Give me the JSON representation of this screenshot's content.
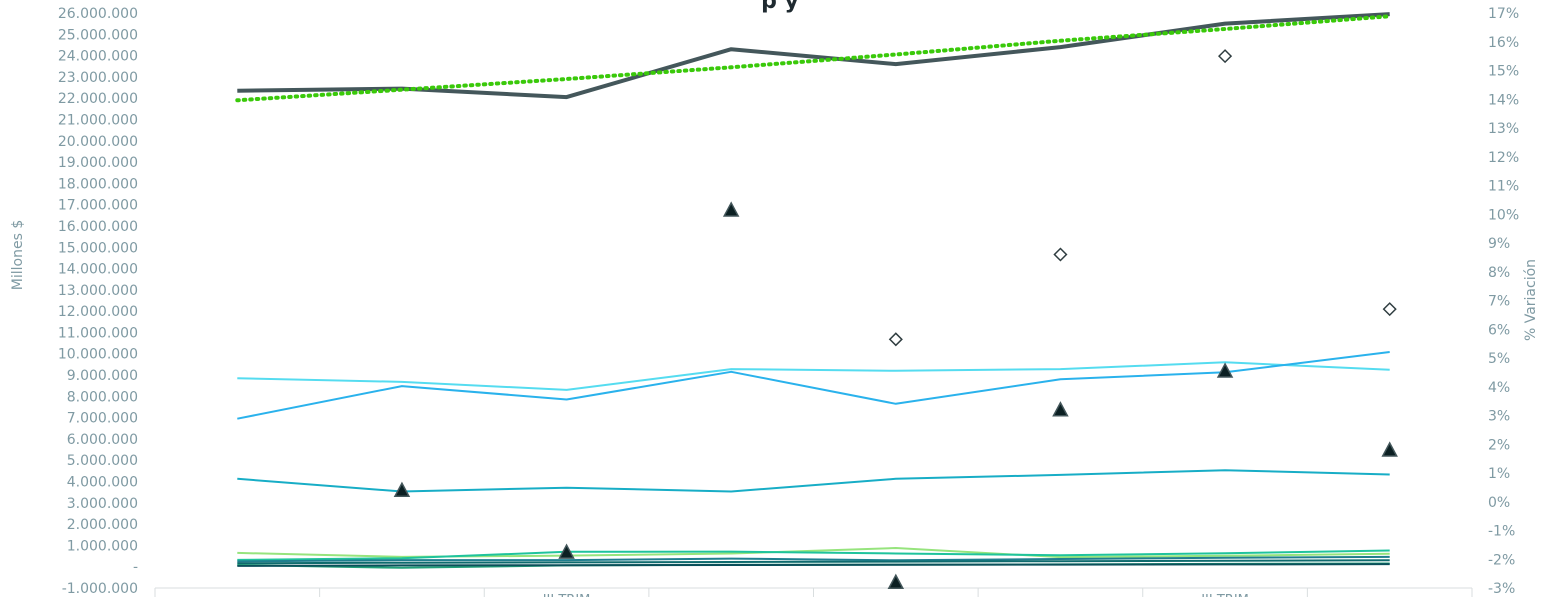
{
  "chart_data": {
    "type": "line",
    "title": "",
    "title_visible": "p y",
    "ylabel": "Millones $",
    "y2label": "% Variación",
    "ylim": [
      -1000000,
      26000000
    ],
    "y2lim": [
      -3,
      17
    ],
    "left_ticks": [
      "-1.000.000",
      "-",
      "1.000.000",
      "2.000.000",
      "3.000.000",
      "4.000.000",
      "5.000.000",
      "6.000.000",
      "7.000.000",
      "8.000.000",
      "9.000.000",
      "10.000.000",
      "11.000.000",
      "12.000.000",
      "13.000.000",
      "14.000.000",
      "15.000.000",
      "16.000.000",
      "17.000.000",
      "18.000.000",
      "19.000.000",
      "20.000.000",
      "21.000.000",
      "22.000.000",
      "23.000.000",
      "24.000.000",
      "25.000.000",
      "26.000.000"
    ],
    "right_ticks": [
      "-3%",
      "-2%",
      "-1%",
      "0%",
      "1%",
      "2%",
      "3%",
      "4%",
      "5%",
      "6%",
      "7%",
      "8%",
      "9%",
      "10%",
      "11%",
      "12%",
      "13%",
      "14%",
      "15%",
      "16%",
      "17%"
    ],
    "categories": [
      "",
      "",
      "III TRIM",
      "",
      "",
      "",
      "III TRIM",
      ""
    ],
    "series": [
      {
        "name": "",
        "axis": "left",
        "color": "#44575b",
        "width": 4,
        "values": [
          22350000,
          22450000,
          22050000,
          24300000,
          23600000,
          24400000,
          25500000,
          25950000
        ]
      },
      {
        "name": "",
        "axis": "left",
        "color": "#3ac90a",
        "width": 4,
        "dash": "dotted",
        "values": [
          21900000,
          22400000,
          22900000,
          23450000,
          24050000,
          24700000,
          25250000,
          25850000
        ]
      },
      {
        "name": "",
        "axis": "left",
        "color": "#55dcf0",
        "width": 2,
        "values": [
          8850000,
          8680000,
          8300000,
          9280000,
          9200000,
          9280000,
          9600000,
          9250000
        ]
      },
      {
        "name": "",
        "axis": "left",
        "color": "#2ab2ec",
        "width": 2,
        "values": [
          6950000,
          8480000,
          7850000,
          9150000,
          7650000,
          8800000,
          9130000,
          10080000
        ]
      },
      {
        "name": "",
        "axis": "left",
        "color": "#17adc6",
        "width": 2,
        "values": [
          4130000,
          3530000,
          3710000,
          3530000,
          4130000,
          4310000,
          4530000,
          4330000
        ]
      },
      {
        "name": "",
        "axis": "left",
        "color": "#96e47d",
        "width": 2,
        "values": [
          650000,
          460000,
          520000,
          620000,
          880000,
          450000,
          510000,
          610000
        ]
      },
      {
        "name": "",
        "axis": "left",
        "color": "#1fc39c",
        "width": 2,
        "values": [
          320000,
          400000,
          700000,
          710000,
          620000,
          540000,
          630000,
          760000
        ]
      },
      {
        "name": "",
        "axis": "left",
        "color": "#1f7e8e",
        "width": 2,
        "values": [
          250000,
          310000,
          310000,
          380000,
          300000,
          360000,
          420000,
          460000
        ]
      },
      {
        "name": "",
        "axis": "left",
        "color": "#0e6b6e",
        "width": 2,
        "values": [
          160000,
          190000,
          200000,
          220000,
          240000,
          260000,
          280000,
          300000
        ]
      },
      {
        "name": "",
        "axis": "left",
        "color": "#22a07a",
        "width": 2,
        "values": [
          80000,
          -50000,
          60000,
          90000,
          100000,
          110000,
          130000,
          150000
        ]
      },
      {
        "name": "",
        "axis": "left",
        "color": "#0a4f5a",
        "width": 2,
        "values": [
          40000,
          60000,
          70000,
          80000,
          90000,
          100000,
          110000,
          120000
        ]
      }
    ],
    "markers_triangle": [
      {
        "index": 1,
        "pct": 0.4
      },
      {
        "index": 2,
        "pct": -1.75
      },
      {
        "index": 3,
        "pct": 10.15
      },
      {
        "index": 4,
        "pct": -2.8
      },
      {
        "index": 5,
        "pct": 3.2
      },
      {
        "index": 6,
        "pct": 4.55
      },
      {
        "index": 7,
        "pct": 1.8
      }
    ],
    "markers_diamond": [
      {
        "index": 4,
        "pct": 5.65
      },
      {
        "index": 5,
        "pct": 8.6
      },
      {
        "index": 6,
        "pct": 15.5
      },
      {
        "index": 7,
        "pct": 6.7
      }
    ],
    "grid": false,
    "legend": "none"
  }
}
